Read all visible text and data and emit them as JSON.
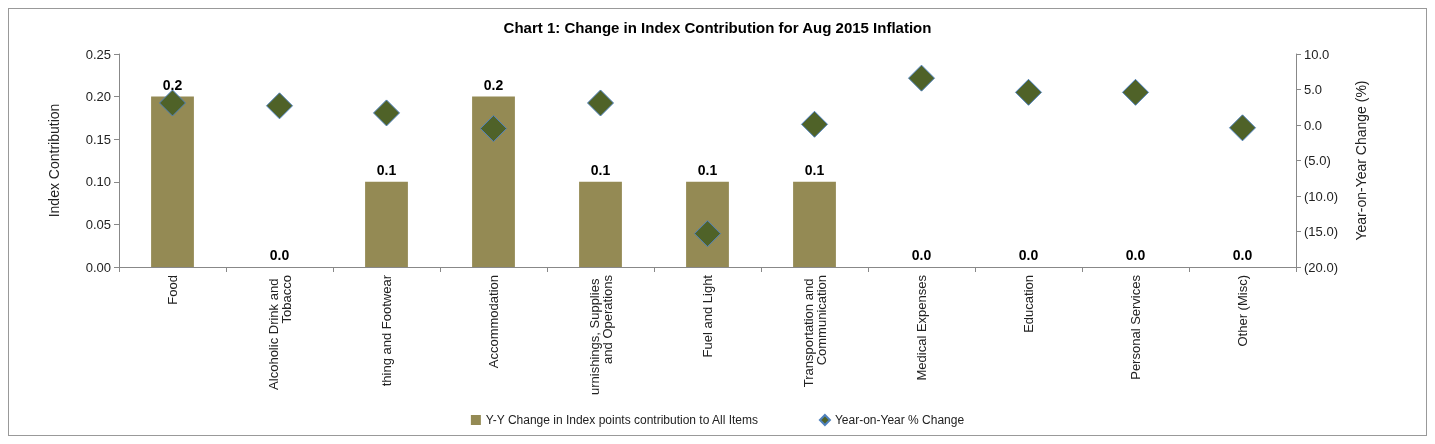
{
  "chart_data": {
    "type": "bar",
    "title": "Chart 1: Change in Index Contribution for Aug 2015 Inflation",
    "ylabel": "Index Contribution",
    "y2label": "Year-on-Year Change (%)",
    "categories": [
      "Food",
      "Alcoholic Drink and Tobacco",
      "thing and Footwear",
      "Accommodation",
      "urnishings, Supplies and Operations",
      "Fuel and Light",
      "Transportation and Communication",
      "Medical Expenses",
      "Education",
      "Personal Services",
      "Other (Misc)"
    ],
    "series": [
      {
        "name": "Y-Y Change in Index points contribution to All Items",
        "type": "bar",
        "color": "#948a54",
        "values": [
          0.2,
          0,
          0.1,
          0.2,
          0.1,
          0.1,
          0.1,
          0,
          0,
          0,
          0
        ],
        "value_labels": [
          "0.2",
          "0.0",
          "0.1",
          "0.2",
          "0.1",
          "0.1",
          "0.1",
          "0.0",
          "0.0",
          "0.0",
          "0.0"
        ]
      },
      {
        "name": "Year-on-Year % Change",
        "type": "scatter",
        "axis": "y2",
        "color": "#4f6228",
        "marker": "diamond",
        "values": [
          3.1,
          2.7,
          1.7,
          -0.5,
          3.1,
          -15.3,
          0.1,
          6.6,
          4.6,
          4.6,
          -0.4
        ]
      }
    ],
    "ylim": [
      0,
      0.25
    ],
    "yticks": [
      {
        "value": 0,
        "label": "0.00"
      },
      {
        "value": 0.05,
        "label": "0.05"
      },
      {
        "value": 0.1,
        "label": "0.10"
      },
      {
        "value": 0.15,
        "label": "0.15"
      },
      {
        "value": 0.2,
        "label": "0.20"
      },
      {
        "value": 0.25,
        "label": "0.25"
      }
    ],
    "y2lim": [
      -20,
      10
    ],
    "y2ticks": [
      {
        "value": -20,
        "label": "(20.0)"
      },
      {
        "value": -15,
        "label": "(15.0)"
      },
      {
        "value": -10,
        "label": "(10.0)"
      },
      {
        "value": -5,
        "label": "(5.0)"
      },
      {
        "value": 0,
        "label": "0.0"
      },
      {
        "value": 5,
        "label": "5.0"
      },
      {
        "value": 10,
        "label": "10.0"
      }
    ],
    "grid": false,
    "legend": "bottom"
  }
}
